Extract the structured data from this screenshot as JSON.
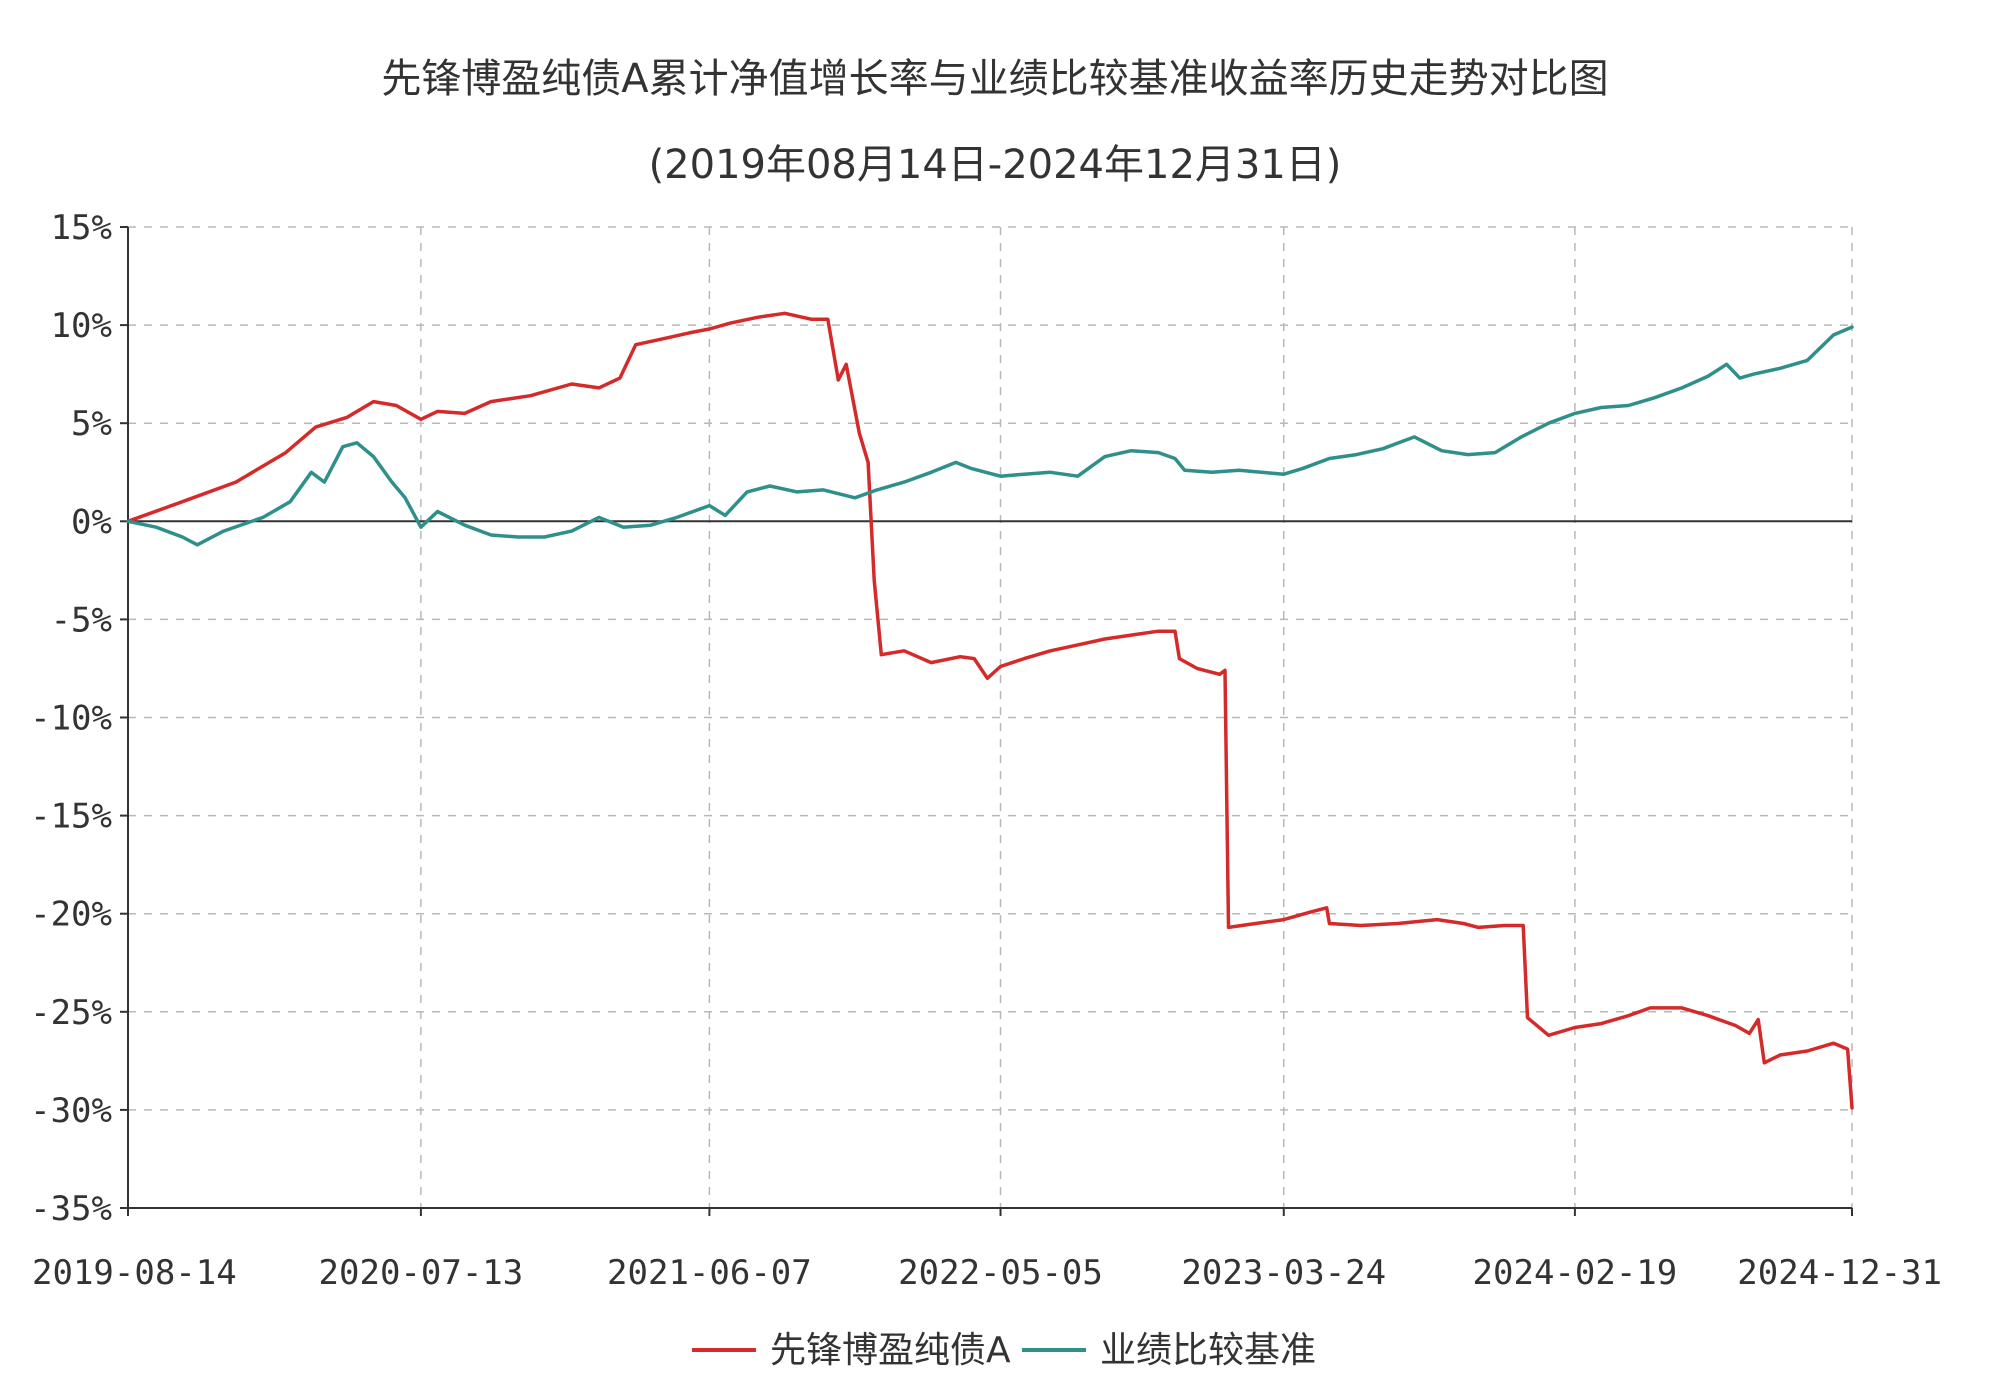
{
  "chart_data": {
    "type": "line",
    "title": "先锋博盈纯债A累计净值增长率与业绩比较基准收益率历史走势对比图",
    "subtitle": "(2019年08月14日-2024年12月31日)",
    "xlabel": "",
    "ylabel": "",
    "x_axis": {
      "type": "date",
      "range": [
        "2019-08-14",
        "2024-12-31"
      ],
      "ticks": [
        "2019-08-14",
        "2020-07-13",
        "2021-06-07",
        "2022-05-05",
        "2023-03-24",
        "2024-02-19",
        "2024-12-31"
      ]
    },
    "y_axis": {
      "range": [
        -35,
        15
      ],
      "unit": "%",
      "ticks": [
        15,
        10,
        5,
        0,
        -5,
        -10,
        -15,
        -20,
        -25,
        -30,
        -35
      ],
      "tick_labels": [
        "15%",
        "10%",
        "5%",
        "0%",
        "-5%",
        "-10%",
        "-15%",
        "-20%",
        "-25%",
        "-30%",
        "-35%"
      ]
    },
    "grid": true,
    "legend": {
      "position": "bottom-center"
    },
    "series": [
      {
        "name": "先锋博盈纯债A",
        "color": "#d42a2a",
        "points": [
          [
            "2019-08-14",
            0.0
          ],
          [
            "2019-10-15",
            1.0
          ],
          [
            "2019-12-15",
            2.0
          ],
          [
            "2020-02-10",
            3.5
          ],
          [
            "2020-03-15",
            4.8
          ],
          [
            "2020-04-20",
            5.3
          ],
          [
            "2020-05-20",
            6.1
          ],
          [
            "2020-06-15",
            5.9
          ],
          [
            "2020-07-13",
            5.2
          ],
          [
            "2020-08-01",
            5.6
          ],
          [
            "2020-09-01",
            5.5
          ],
          [
            "2020-10-01",
            6.1
          ],
          [
            "2020-11-15",
            6.4
          ],
          [
            "2021-01-01",
            7.0
          ],
          [
            "2021-02-01",
            6.8
          ],
          [
            "2021-02-25",
            7.3
          ],
          [
            "2021-03-15",
            9.0
          ],
          [
            "2021-04-15",
            9.3
          ],
          [
            "2021-05-15",
            9.6
          ],
          [
            "2021-06-07",
            9.8
          ],
          [
            "2021-07-01",
            10.1
          ],
          [
            "2021-08-01",
            10.4
          ],
          [
            "2021-09-01",
            10.6
          ],
          [
            "2021-10-01",
            10.3
          ],
          [
            "2021-10-20",
            10.3
          ],
          [
            "2021-11-01",
            7.2
          ],
          [
            "2021-11-10",
            8.0
          ],
          [
            "2021-11-25",
            4.5
          ],
          [
            "2021-12-05",
            3.0
          ],
          [
            "2021-12-12",
            -3.0
          ],
          [
            "2021-12-20",
            -6.8
          ],
          [
            "2022-01-15",
            -6.6
          ],
          [
            "2022-02-15",
            -7.2
          ],
          [
            "2022-03-20",
            -6.9
          ],
          [
            "2022-04-05",
            -7.0
          ],
          [
            "2022-04-20",
            -8.0
          ],
          [
            "2022-05-05",
            -7.4
          ],
          [
            "2022-06-01",
            -7.0
          ],
          [
            "2022-07-01",
            -6.6
          ],
          [
            "2022-08-01",
            -6.3
          ],
          [
            "2022-09-01",
            -6.0
          ],
          [
            "2022-10-01",
            -5.8
          ],
          [
            "2022-11-01",
            -5.6
          ],
          [
            "2022-11-20",
            -5.6
          ],
          [
            "2022-11-25",
            -7.0
          ],
          [
            "2022-12-15",
            -7.5
          ],
          [
            "2023-01-10",
            -7.8
          ],
          [
            "2023-01-16",
            -7.6
          ],
          [
            "2023-01-20",
            -20.7
          ],
          [
            "2023-02-20",
            -20.5
          ],
          [
            "2023-03-24",
            -20.3
          ],
          [
            "2023-04-25",
            -19.9
          ],
          [
            "2023-05-12",
            -19.7
          ],
          [
            "2023-05-15",
            -20.5
          ],
          [
            "2023-06-20",
            -20.6
          ],
          [
            "2023-08-01",
            -20.5
          ],
          [
            "2023-09-15",
            -20.3
          ],
          [
            "2023-10-15",
            -20.5
          ],
          [
            "2023-11-01",
            -20.7
          ],
          [
            "2023-12-01",
            -20.6
          ],
          [
            "2023-12-22",
            -20.6
          ],
          [
            "2023-12-27",
            -25.3
          ],
          [
            "2024-01-20",
            -26.2
          ],
          [
            "2024-02-19",
            -25.8
          ],
          [
            "2024-03-20",
            -25.6
          ],
          [
            "2024-04-20",
            -25.2
          ],
          [
            "2024-05-15",
            -24.8
          ],
          [
            "2024-06-20",
            -24.8
          ],
          [
            "2024-07-20",
            -25.2
          ],
          [
            "2024-08-20",
            -25.7
          ],
          [
            "2024-09-05",
            -26.1
          ],
          [
            "2024-09-15",
            -25.4
          ],
          [
            "2024-09-22",
            -27.6
          ],
          [
            "2024-10-10",
            -27.2
          ],
          [
            "2024-11-10",
            -27.0
          ],
          [
            "2024-12-10",
            -26.6
          ],
          [
            "2024-12-26",
            -26.9
          ],
          [
            "2024-12-31",
            -29.9
          ]
        ]
      },
      {
        "name": "业绩比较基准",
        "color": "#2f8f8a",
        "points": [
          [
            "2019-08-14",
            0.0
          ],
          [
            "2019-09-15",
            -0.3
          ],
          [
            "2019-10-15",
            -0.8
          ],
          [
            "2019-11-01",
            -1.2
          ],
          [
            "2019-12-01",
            -0.5
          ],
          [
            "2020-01-15",
            0.2
          ],
          [
            "2020-02-15",
            1.0
          ],
          [
            "2020-03-10",
            2.5
          ],
          [
            "2020-03-25",
            2.0
          ],
          [
            "2020-04-15",
            3.8
          ],
          [
            "2020-05-01",
            4.0
          ],
          [
            "2020-05-20",
            3.3
          ],
          [
            "2020-06-10",
            2.0
          ],
          [
            "2020-06-25",
            1.2
          ],
          [
            "2020-07-13",
            -0.3
          ],
          [
            "2020-08-01",
            0.5
          ],
          [
            "2020-09-01",
            -0.2
          ],
          [
            "2020-10-01",
            -0.7
          ],
          [
            "2020-11-01",
            -0.8
          ],
          [
            "2020-12-01",
            -0.8
          ],
          [
            "2021-01-01",
            -0.5
          ],
          [
            "2021-02-01",
            0.2
          ],
          [
            "2021-03-01",
            -0.3
          ],
          [
            "2021-04-01",
            -0.2
          ],
          [
            "2021-05-01",
            0.2
          ],
          [
            "2021-06-07",
            0.8
          ],
          [
            "2021-06-25",
            0.3
          ],
          [
            "2021-07-20",
            1.5
          ],
          [
            "2021-08-15",
            1.8
          ],
          [
            "2021-09-15",
            1.5
          ],
          [
            "2021-10-15",
            1.6
          ],
          [
            "2021-11-20",
            1.2
          ],
          [
            "2021-12-15",
            1.6
          ],
          [
            "2022-01-15",
            2.0
          ],
          [
            "2022-02-15",
            2.5
          ],
          [
            "2022-03-15",
            3.0
          ],
          [
            "2022-04-01",
            2.7
          ],
          [
            "2022-05-05",
            2.3
          ],
          [
            "2022-06-01",
            2.4
          ],
          [
            "2022-07-01",
            2.5
          ],
          [
            "2022-08-01",
            2.3
          ],
          [
            "2022-09-01",
            3.3
          ],
          [
            "2022-10-01",
            3.6
          ],
          [
            "2022-11-01",
            3.5
          ],
          [
            "2022-11-20",
            3.2
          ],
          [
            "2022-12-01",
            2.6
          ],
          [
            "2023-01-01",
            2.5
          ],
          [
            "2023-02-01",
            2.6
          ],
          [
            "2023-03-24",
            2.4
          ],
          [
            "2023-04-15",
            2.7
          ],
          [
            "2023-05-15",
            3.2
          ],
          [
            "2023-06-15",
            3.4
          ],
          [
            "2023-07-15",
            3.7
          ],
          [
            "2023-08-20",
            4.3
          ],
          [
            "2023-09-20",
            3.6
          ],
          [
            "2023-10-20",
            3.4
          ],
          [
            "2023-11-20",
            3.5
          ],
          [
            "2023-12-20",
            4.3
          ],
          [
            "2024-01-20",
            5.0
          ],
          [
            "2024-02-19",
            5.5
          ],
          [
            "2024-03-20",
            5.8
          ],
          [
            "2024-04-20",
            5.9
          ],
          [
            "2024-05-20",
            6.3
          ],
          [
            "2024-06-20",
            6.8
          ],
          [
            "2024-07-20",
            7.4
          ],
          [
            "2024-08-10",
            8.0
          ],
          [
            "2024-08-25",
            7.3
          ],
          [
            "2024-09-10",
            7.5
          ],
          [
            "2024-10-10",
            7.8
          ],
          [
            "2024-11-10",
            8.2
          ],
          [
            "2024-12-10",
            9.5
          ],
          [
            "2024-12-31",
            9.9
          ]
        ]
      }
    ]
  }
}
